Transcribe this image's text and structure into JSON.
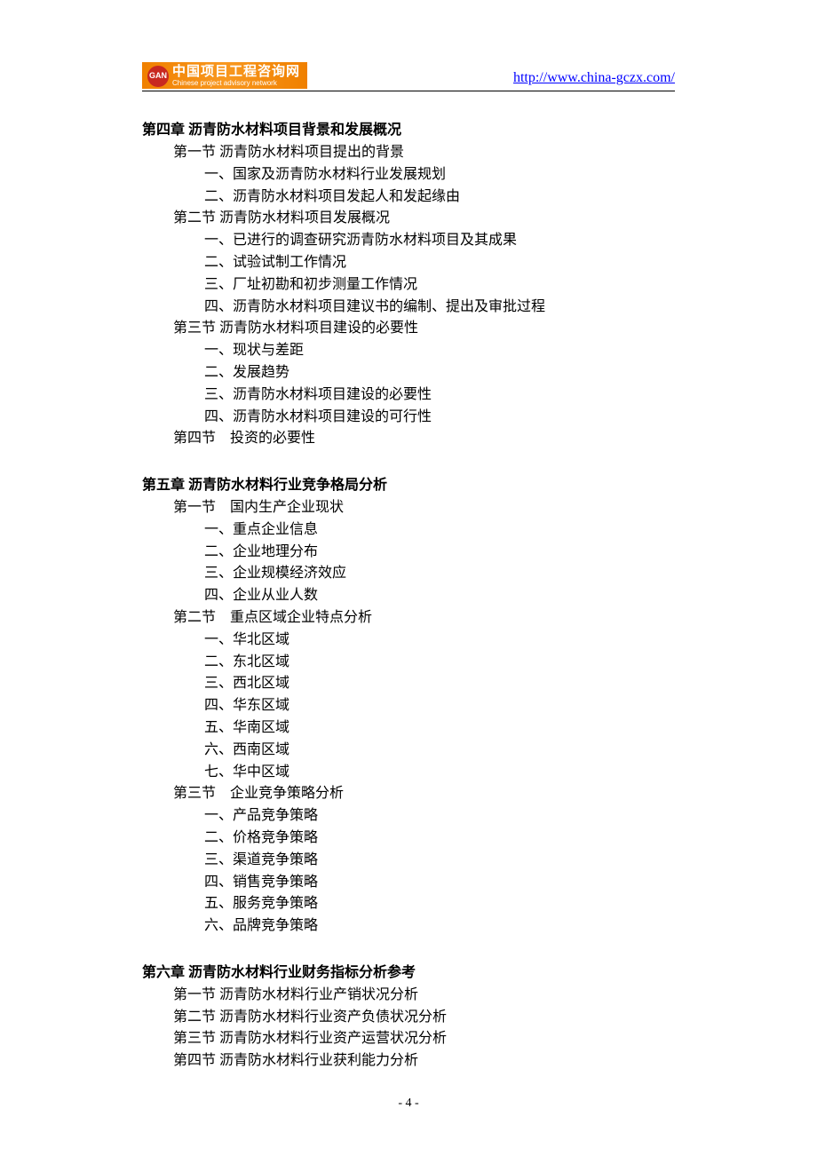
{
  "header": {
    "logo_abbr": "GAN",
    "logo_cn": "中国项目工程咨询网",
    "logo_en": "Chinese project advisory network",
    "url": "http://www.china-gczx.com/"
  },
  "content": [
    {
      "type": "chapter",
      "first": true,
      "text": "第四章  沥青防水材料项目背景和发展概况"
    },
    {
      "type": "section",
      "text": "第一节  沥青防水材料项目提出的背景"
    },
    {
      "type": "item",
      "text": "一、国家及沥青防水材料行业发展规划"
    },
    {
      "type": "item",
      "text": "二、沥青防水材料项目发起人和发起缘由"
    },
    {
      "type": "section",
      "text": "第二节  沥青防水材料项目发展概况"
    },
    {
      "type": "item",
      "text": "一、已进行的调查研究沥青防水材料项目及其成果"
    },
    {
      "type": "item",
      "text": "二、试验试制工作情况"
    },
    {
      "type": "item",
      "text": "三、厂址初勘和初步测量工作情况"
    },
    {
      "type": "item",
      "text": "四、沥青防水材料项目建议书的编制、提出及审批过程"
    },
    {
      "type": "section",
      "text": "第三节  沥青防水材料项目建设的必要性"
    },
    {
      "type": "item",
      "text": "一、现状与差距"
    },
    {
      "type": "item",
      "text": "二、发展趋势"
    },
    {
      "type": "item",
      "text": "三、沥青防水材料项目建设的必要性"
    },
    {
      "type": "item",
      "text": "四、沥青防水材料项目建设的可行性"
    },
    {
      "type": "section",
      "text": "第四节　投资的必要性"
    },
    {
      "type": "gap"
    },
    {
      "type": "chapter",
      "text": "第五章  沥青防水材料行业竞争格局分析"
    },
    {
      "type": "section",
      "text": "第一节　国内生产企业现状"
    },
    {
      "type": "item",
      "text": "一、重点企业信息"
    },
    {
      "type": "item",
      "text": "二、企业地理分布"
    },
    {
      "type": "item",
      "text": "三、企业规模经济效应"
    },
    {
      "type": "item",
      "text": "四、企业从业人数"
    },
    {
      "type": "section",
      "text": "第二节　重点区域企业特点分析"
    },
    {
      "type": "item",
      "text": "一、华北区域"
    },
    {
      "type": "item",
      "text": "二、东北区域"
    },
    {
      "type": "item",
      "text": "三、西北区域"
    },
    {
      "type": "item",
      "text": "四、华东区域"
    },
    {
      "type": "item",
      "text": "五、华南区域"
    },
    {
      "type": "item",
      "text": "六、西南区域"
    },
    {
      "type": "item",
      "text": "七、华中区域"
    },
    {
      "type": "section",
      "text": "第三节　企业竞争策略分析"
    },
    {
      "type": "item",
      "text": "一、产品竞争策略"
    },
    {
      "type": "item",
      "text": "二、价格竞争策略"
    },
    {
      "type": "item",
      "text": "三、渠道竞争策略"
    },
    {
      "type": "item",
      "text": "四、销售竞争策略"
    },
    {
      "type": "item",
      "text": "五、服务竞争策略"
    },
    {
      "type": "item",
      "text": "六、品牌竞争策略"
    },
    {
      "type": "gap"
    },
    {
      "type": "chapter",
      "text": "第六章  沥青防水材料行业财务指标分析参考"
    },
    {
      "type": "section",
      "text": "第一节  沥青防水材料行业产销状况分析"
    },
    {
      "type": "section",
      "text": "第二节  沥青防水材料行业资产负债状况分析"
    },
    {
      "type": "section",
      "text": "第三节  沥青防水材料行业资产运营状况分析"
    },
    {
      "type": "section",
      "text": "第四节  沥青防水材料行业获利能力分析"
    }
  ],
  "footer": {
    "page": "- 4 -"
  },
  "colors": {
    "text": "#000000",
    "link": "#0000ff",
    "logo_bg": "#f08000",
    "logo_icon_bg": "#c82820",
    "background": "#ffffff"
  }
}
